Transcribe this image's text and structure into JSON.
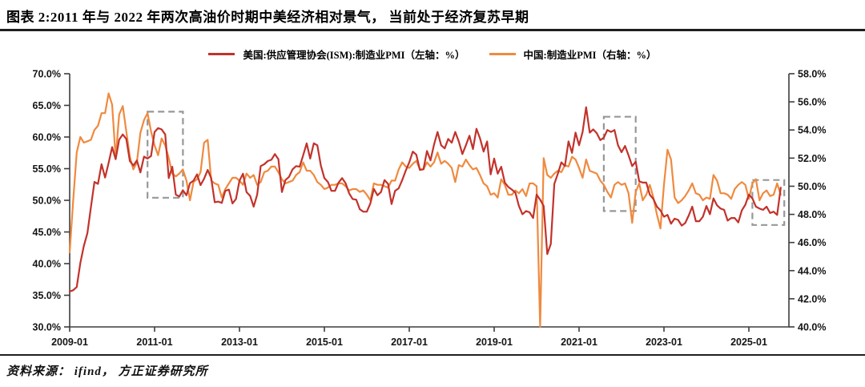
{
  "page": {
    "title": "图表 2:2011 年与 2022 年两次高油价时期中美经济相对景气， 当前处于经济复苏早期",
    "source_note": "资料来源： ifind， 方正证券研究所"
  },
  "colors": {
    "us_line": "#c2322b",
    "china_line": "#ef8a3f",
    "rule_line": "#1f1f1f",
    "axis": "#3d3d3d",
    "highlight_box": "#979797",
    "text": "#000000"
  },
  "chart_data": {
    "type": "line",
    "grid": false,
    "legend_position": "top-center",
    "x_start": "2009-01",
    "x_frequency": "monthly",
    "x_tick_labels": [
      "2009-01",
      "2011-01",
      "2013-01",
      "2015-01",
      "2017-01",
      "2019-01",
      "2021-01",
      "2023-01",
      "2025-01"
    ],
    "left_axis": {
      "min": 30,
      "max": 70,
      "unit": "%",
      "tick_labels": [
        "70.0%",
        "65.0%",
        "60.0%",
        "55.0%",
        "50.0%",
        "45.0%",
        "40.0%",
        "35.0%",
        "30.0%"
      ]
    },
    "right_axis": {
      "min": 40,
      "max": 58,
      "unit": "%",
      "tick_labels": [
        "58.0%",
        "56.0%",
        "54.0%",
        "52.0%",
        "50.0%",
        "48.0%",
        "46.0%",
        "44.0%",
        "42.0%",
        "40.0%"
      ]
    },
    "series": [
      {
        "name": "美国:供应管理协会(ISM):制造业PMI（左轴：%）",
        "axis": "left",
        "color": "#c2322b",
        "values": [
          35.6,
          35.8,
          36.3,
          40.1,
          42.8,
          44.8,
          48.9,
          52.9,
          52.6,
          55.7,
          53.6,
          55.9,
          58.4,
          56.5,
          59.6,
          60.4,
          59.7,
          56.2,
          55.5,
          56.3,
          54.4,
          56.9,
          56.6,
          57.0,
          60.8,
          61.4,
          61.2,
          60.4,
          53.5,
          55.3,
          50.9,
          50.6,
          51.6,
          50.8,
          52.7,
          53.1,
          54.1,
          52.4,
          53.4,
          54.8,
          53.5,
          49.7,
          49.8,
          49.6,
          51.5,
          51.7,
          49.5,
          50.2,
          53.1,
          54.2,
          51.3,
          50.7,
          49.0,
          50.9,
          55.4,
          55.7,
          56.2,
          56.4,
          57.3,
          56.5,
          51.3,
          53.2,
          53.7,
          54.9,
          55.4,
          55.3,
          57.1,
          59.0,
          56.6,
          59.0,
          58.7,
          55.5,
          53.5,
          52.9,
          51.5,
          51.5,
          52.8,
          53.5,
          52.7,
          51.1,
          50.2,
          50.1,
          48.6,
          48.2,
          48.2,
          49.5,
          51.8,
          50.8,
          51.3,
          53.2,
          52.6,
          49.4,
          51.5,
          51.9,
          53.2,
          54.7,
          56.0,
          57.7,
          57.2,
          54.8,
          54.9,
          57.8,
          56.3,
          58.8,
          60.8,
          58.7,
          58.2,
          59.7,
          59.1,
          60.8,
          59.3,
          57.3,
          58.7,
          60.2,
          58.1,
          61.3,
          59.8,
          57.7,
          59.3,
          54.1,
          56.6,
          54.2,
          55.3,
          52.8,
          52.1,
          51.7,
          51.2,
          49.1,
          47.8,
          48.3,
          48.1,
          47.2,
          50.9,
          50.1,
          49.1,
          41.5,
          43.1,
          52.6,
          54.2,
          56.0,
          55.4,
          59.3,
          57.5,
          60.7,
          58.7,
          60.8,
          64.7,
          60.7,
          61.2,
          60.6,
          59.5,
          59.9,
          61.1,
          60.8,
          61.1,
          58.7,
          57.6,
          58.6,
          57.1,
          55.4,
          56.1,
          53.0,
          52.8,
          52.8,
          50.9,
          50.2,
          49.0,
          48.4,
          47.4,
          47.7,
          46.3,
          47.1,
          46.9,
          46.0,
          46.4,
          47.6,
          49.0,
          46.7,
          46.7,
          47.4,
          49.1,
          47.8,
          50.3,
          49.2,
          48.7,
          48.5,
          46.8,
          47.2,
          47.2,
          46.5,
          48.4,
          49.3,
          50.9,
          50.3,
          49.0,
          48.7,
          48.5,
          49.0,
          48.0,
          48.2,
          47.7,
          52.0
        ]
      },
      {
        "name": "中国:制造业PMI（右轴：%）",
        "axis": "right",
        "color": "#ef8a3f",
        "values": [
          45.3,
          49.0,
          52.4,
          53.5,
          53.1,
          53.2,
          53.3,
          54.0,
          54.3,
          55.2,
          55.2,
          56.6,
          55.8,
          52.0,
          55.1,
          55.7,
          53.9,
          52.1,
          51.2,
          51.7,
          53.8,
          54.7,
          55.2,
          53.9,
          52.9,
          52.2,
          53.4,
          52.9,
          52.0,
          50.9,
          50.7,
          50.9,
          51.2,
          50.4,
          49.0,
          50.3,
          50.5,
          51.0,
          53.1,
          53.3,
          50.4,
          50.2,
          50.1,
          49.2,
          49.8,
          50.2,
          50.6,
          50.6,
          50.4,
          50.1,
          50.9,
          50.6,
          50.8,
          50.1,
          50.3,
          51.0,
          51.1,
          51.4,
          51.4,
          51.0,
          50.5,
          50.2,
          50.3,
          50.4,
          50.8,
          51.0,
          51.7,
          51.1,
          51.1,
          50.8,
          50.3,
          50.1,
          49.8,
          49.9,
          50.1,
          50.1,
          50.2,
          50.2,
          50.0,
          49.7,
          49.8,
          49.8,
          49.6,
          49.7,
          49.4,
          49.0,
          50.2,
          50.1,
          50.1,
          50.0,
          49.9,
          50.4,
          50.4,
          51.2,
          51.7,
          51.4,
          51.3,
          51.6,
          51.8,
          51.2,
          51.2,
          51.7,
          51.4,
          51.7,
          52.4,
          51.6,
          51.8,
          51.6,
          51.3,
          50.3,
          51.5,
          51.4,
          51.9,
          51.5,
          51.2,
          51.3,
          50.8,
          50.2,
          50.0,
          49.4,
          49.5,
          49.2,
          50.5,
          50.1,
          49.4,
          49.4,
          49.7,
          49.5,
          49.8,
          49.3,
          50.2,
          50.2,
          50.0,
          35.7,
          52.0,
          50.8,
          50.6,
          50.9,
          51.1,
          51.0,
          51.5,
          51.4,
          52.1,
          51.9,
          51.3,
          50.6,
          51.9,
          51.1,
          51.0,
          50.9,
          50.4,
          50.1,
          49.6,
          49.2,
          50.1,
          50.3,
          50.1,
          50.2,
          49.5,
          47.4,
          49.6,
          50.2,
          49.0,
          49.4,
          50.1,
          49.2,
          48.0,
          47.0,
          50.1,
          52.6,
          51.9,
          49.2,
          48.8,
          49.0,
          49.3,
          49.7,
          50.2,
          49.5,
          49.4,
          49.0,
          49.2,
          49.1,
          50.8,
          50.4,
          49.5,
          49.5,
          49.4,
          49.1,
          49.8,
          50.1,
          50.3,
          50.1,
          49.1,
          50.2,
          50.5,
          49.0,
          49.5,
          49.7,
          49.3,
          49.4,
          50.2,
          49.4
        ]
      }
    ],
    "highlight_boxes": [
      {
        "x_start": "2010-11",
        "x_end": "2011-09",
        "y_top_left_axis": 64.0,
        "y_bottom_left_axis": 50.4
      },
      {
        "x_start": "2021-08",
        "x_end": "2022-05",
        "y_top_left_axis": 63.2,
        "y_bottom_left_axis": 48.3
      },
      {
        "x_start": "2025-02",
        "x_end": "2025-11",
        "y_top_left_axis": 53.2,
        "y_bottom_left_axis": 46.1
      }
    ]
  }
}
